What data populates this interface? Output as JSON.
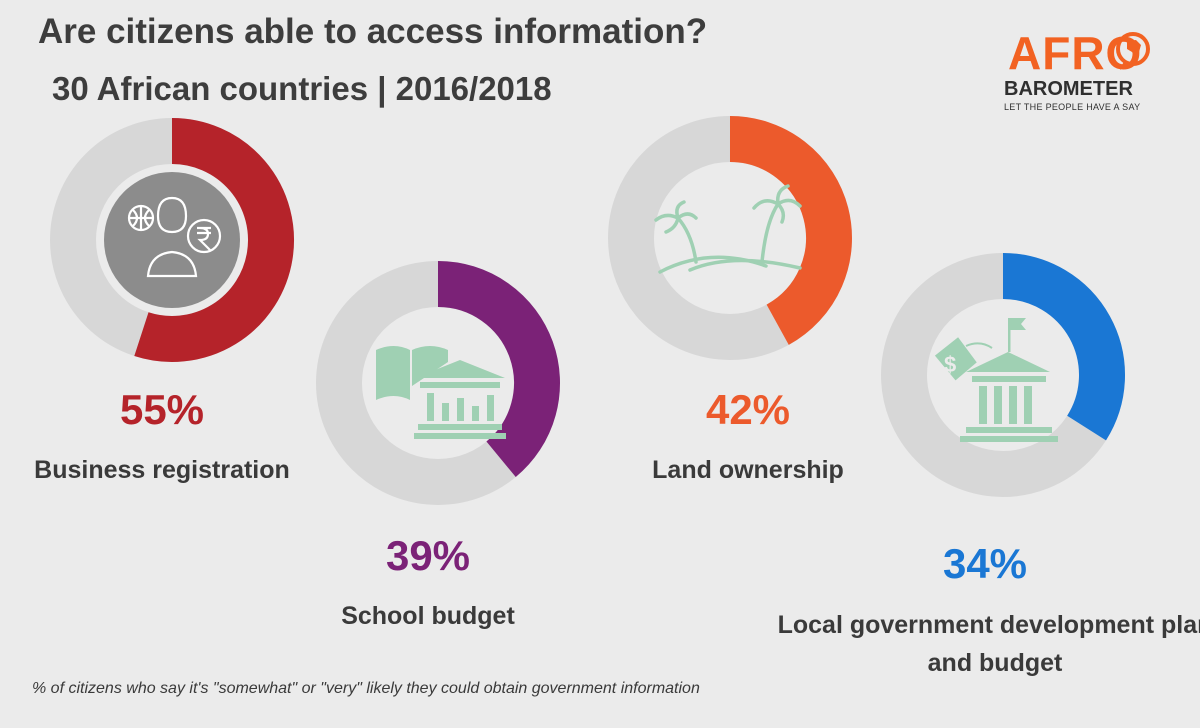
{
  "title": "Are citizens able to access information?",
  "subtitle": "30 African countries | 2016/2018",
  "logo": {
    "afro": "AFRO",
    "barometer": "BAROMETER",
    "tagline": "LET THE PEOPLE HAVE A SAY"
  },
  "chart_data": {
    "type": "donut",
    "unit": "%",
    "series": [
      {
        "category": "Business registration",
        "value": 55,
        "value_label": "55%",
        "color": "#b5232a",
        "icon": "citizen-rupee-icon"
      },
      {
        "category": "School budget",
        "value": 39,
        "value_label": "39%",
        "color": "#7b2277",
        "icon": "book-bank-icon"
      },
      {
        "category": "Land ownership",
        "value": 42,
        "value_label": "42%",
        "color": "#ec5a2c",
        "icon": "palm-island-icon"
      },
      {
        "category": "Local government development plan and budget",
        "value": 34,
        "value_label": "34%",
        "color": "#1a77d4",
        "icon": "dollar-tag-building-icon"
      }
    ],
    "track_color": "#d7d7d7",
    "footnote": "% of citizens who say it's \"somewhat\" or \"very\" likely they could obtain government information"
  },
  "colors": {
    "background": "#ebebeb",
    "icon_fill": "#9fd0b3",
    "text": "#3a3a3a",
    "brand": "#f26222"
  }
}
